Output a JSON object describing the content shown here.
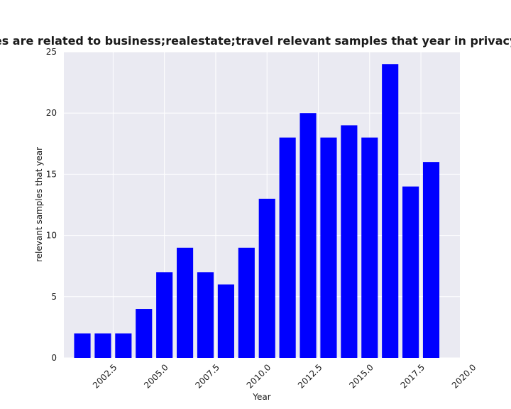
{
  "chart_data": {
    "type": "bar",
    "title": "categories are related to business;realestate;travel relevant samples that year in privacy policies",
    "xlabel": "Year",
    "ylabel": "relevant samples that year",
    "x": [
      2001,
      2002,
      2003,
      2004,
      2005,
      2006,
      2007,
      2008,
      2009,
      2010,
      2011,
      2012,
      2013,
      2014,
      2015,
      2016,
      2017,
      2018
    ],
    "values": [
      2,
      2,
      2,
      4,
      7,
      9,
      7,
      6,
      9,
      13,
      18,
      20,
      18,
      19,
      18,
      24,
      14,
      16
    ],
    "xlim": [
      2000.1,
      2019.4
    ],
    "ylim": [
      0,
      25
    ],
    "xticks": [
      "2002.5",
      "2005.0",
      "2007.5",
      "2010.0",
      "2012.5",
      "2015.0",
      "2017.5",
      "2020.0"
    ],
    "yticks": [
      "0",
      "5",
      "10",
      "15",
      "20",
      "25"
    ],
    "bar_color": "#0000ff",
    "background_color": "#eaeaf2",
    "grid": true,
    "legend": "none"
  }
}
